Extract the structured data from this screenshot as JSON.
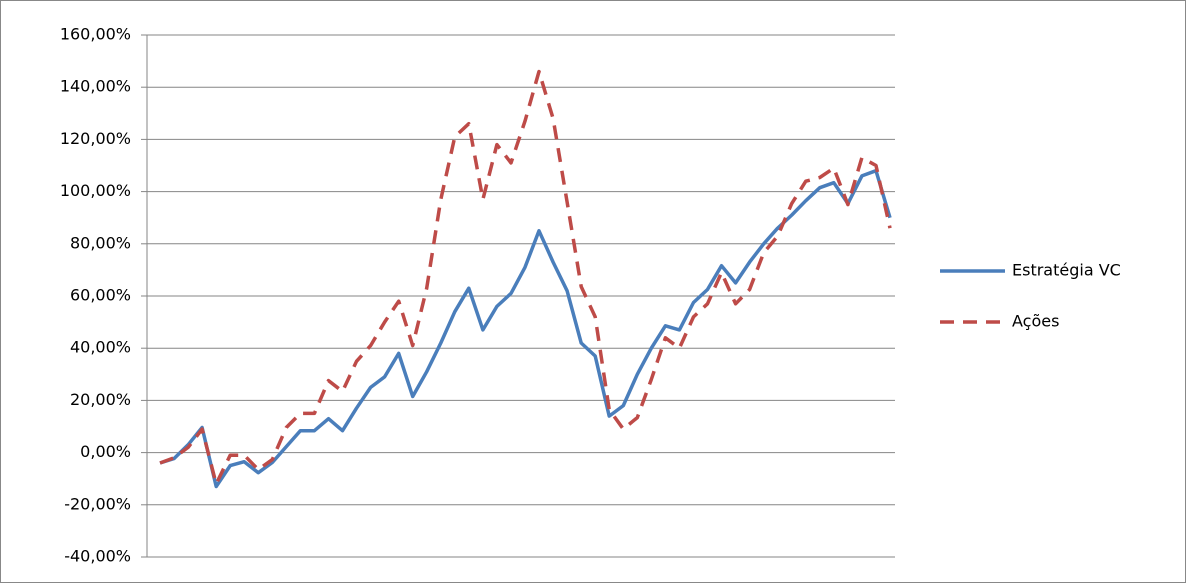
{
  "chart_data": {
    "type": "line",
    "categories": [
      null,
      null,
      null,
      null,
      null,
      null,
      null,
      null,
      null,
      null,
      null,
      null,
      null,
      null,
      null,
      null,
      null,
      null,
      null,
      null,
      null,
      null,
      null,
      null,
      null,
      null,
      null,
      null,
      null,
      null,
      null,
      null,
      null,
      null,
      null,
      null,
      null,
      null,
      null,
      null,
      null,
      null,
      null,
      null,
      null,
      null,
      null,
      null,
      null,
      null,
      null,
      null,
      null
    ],
    "series": [
      {
        "name": "Estratégia VC",
        "color": "#4a7ebb",
        "dash": false,
        "values": [
          -4,
          -2.3,
          3,
          9.6,
          -13,
          -5,
          -3.5,
          -7.7,
          -3.8,
          2.3,
          8.4,
          8.4,
          13,
          8.4,
          17,
          25,
          29,
          38,
          21.5,
          31,
          42,
          54,
          63,
          47,
          56,
          61,
          71,
          85,
          73,
          62,
          42,
          37,
          14,
          18,
          30,
          40,
          48.6,
          47,
          57.5,
          62.5,
          71.6,
          65,
          73,
          80,
          86,
          91,
          96.5,
          101.5,
          103.4,
          95.4,
          106,
          108,
          90
        ]
      },
      {
        "name": "Ações",
        "color": "#be4b48",
        "dash": true,
        "values": [
          -4,
          -2,
          2,
          9,
          -12,
          -1,
          -1,
          -6.5,
          -2.7,
          9.6,
          15,
          15,
          27.6,
          23.4,
          35,
          41,
          50,
          58,
          41,
          63,
          97,
          121,
          126,
          97,
          118,
          111,
          127,
          146,
          128,
          96,
          63.6,
          52,
          16.5,
          9,
          13.4,
          28,
          44,
          40,
          52,
          57,
          69,
          57,
          62.5,
          76.6,
          83,
          95.4,
          104,
          105.4,
          109,
          95,
          113,
          110,
          86
        ]
      }
    ],
    "ylim": [
      -40,
      160
    ],
    "yticks": [
      {
        "value": -40,
        "label": "-40,00%"
      },
      {
        "value": -20,
        "label": "-20,00%"
      },
      {
        "value": 0,
        "label": "0,00%"
      },
      {
        "value": 20,
        "label": "20,00%"
      },
      {
        "value": 40,
        "label": "40,00%"
      },
      {
        "value": 60,
        "label": "60,00%"
      },
      {
        "value": 80,
        "label": "80,00%"
      },
      {
        "value": 100,
        "label": "100,00%"
      },
      {
        "value": 120,
        "label": "120,00%"
      },
      {
        "value": 140,
        "label": "140,00%"
      },
      {
        "value": 160,
        "label": "160,00%"
      }
    ],
    "grid": true,
    "legend": "right"
  }
}
